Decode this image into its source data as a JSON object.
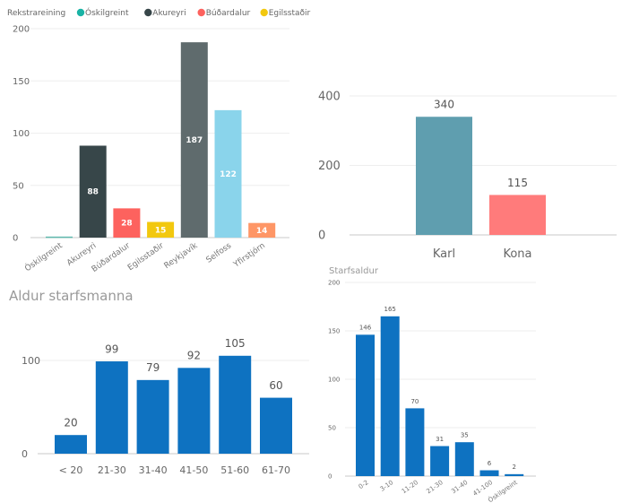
{
  "chart_data": [
    {
      "id": "rekstrareining",
      "type": "bar",
      "title": "",
      "legend_title": "Rekstrareining",
      "legend_placement": "top-left",
      "legend": [
        {
          "label": "Óskilgreint",
          "color": "#1AB3A5"
        },
        {
          "label": "Akureyri",
          "color": "#374649"
        },
        {
          "label": "Búðardalur",
          "color": "#FD625E"
        },
        {
          "label": "Egilsstaðir",
          "color": "#F2C80F"
        }
      ],
      "categories": [
        "Óskilgreint",
        "Akureyri",
        "Búðardalur",
        "Egilsstaðir",
        "Reykjavík",
        "Selfoss",
        "Yfirstjórn"
      ],
      "values": [
        1,
        88,
        28,
        15,
        187,
        122,
        14
      ],
      "data_labels": [
        "",
        "88",
        "28",
        "15",
        "187",
        "122",
        "14"
      ],
      "colors": [
        "#5FB8AE",
        "#374649",
        "#FD625E",
        "#F2C80F",
        "#5F6B6D",
        "#8AD4EB",
        "#FE9666"
      ],
      "yticks": [
        0,
        50,
        100,
        150,
        200
      ],
      "ylim": [
        0,
        200
      ],
      "xlabel": "",
      "ylabel": "",
      "grid": true,
      "label_position": "inside"
    },
    {
      "id": "kyn",
      "type": "bar",
      "title": "",
      "categories": [
        "Karl",
        "Kona"
      ],
      "values": [
        340,
        115
      ],
      "data_labels": [
        "340",
        "115"
      ],
      "colors": [
        "#5F9EAF",
        "#FF7B7B"
      ],
      "yticks": [
        0,
        200,
        400
      ],
      "ylim": [
        0,
        400
      ],
      "xlabel": "",
      "ylabel": "",
      "grid": true,
      "label_position": "above"
    },
    {
      "id": "aldur",
      "type": "bar",
      "title": "Aldur starfsmanna",
      "categories": [
        "< 20",
        "21-30",
        "31-40",
        "41-50",
        "51-60",
        "61-70"
      ],
      "values": [
        20,
        99,
        79,
        92,
        105,
        60
      ],
      "data_labels": [
        "20",
        "99",
        "79",
        "92",
        "105",
        "60"
      ],
      "colors": [
        "#0E72C1"
      ],
      "yticks": [
        0,
        100
      ],
      "ylim": [
        0,
        100
      ],
      "xlabel": "",
      "ylabel": "",
      "grid": true,
      "label_position": "above"
    },
    {
      "id": "starfsaldur",
      "type": "bar",
      "title": "Starfsaldur",
      "categories": [
        "0-2",
        "3-10",
        "11-20",
        "21-30",
        "31-40",
        "41-100",
        "Óskilgreint"
      ],
      "values": [
        146,
        165,
        70,
        31,
        35,
        6,
        2
      ],
      "data_labels": [
        "146",
        "165",
        "70",
        "31",
        "35",
        "6",
        "2"
      ],
      "colors": [
        "#0E72C1"
      ],
      "yticks": [
        0,
        50,
        100,
        150,
        200
      ],
      "ylim": [
        0,
        200
      ],
      "xlabel": "",
      "ylabel": "",
      "grid": true,
      "label_position": "above"
    }
  ]
}
